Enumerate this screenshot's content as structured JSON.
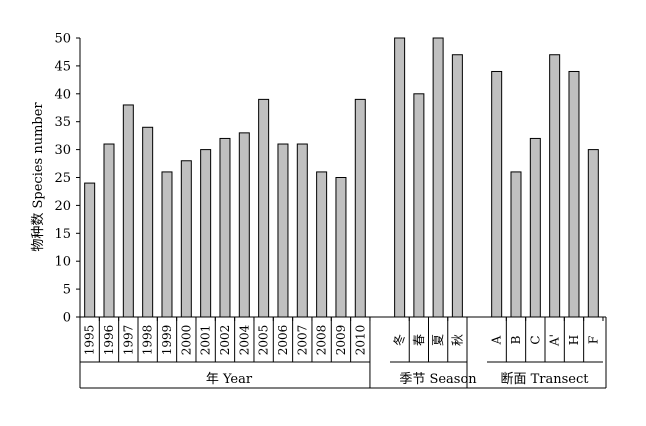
{
  "chart_data": {
    "type": "bar",
    "ylabel": "物种数 Species number",
    "ylim": [
      0,
      50
    ],
    "yticks": [
      0,
      5,
      10,
      15,
      20,
      25,
      30,
      35,
      40,
      45,
      50
    ],
    "grid": false,
    "legend": "none",
    "bar_color": "#c0c0c0",
    "groups": [
      {
        "label": "年 Year",
        "categories": [
          "1995",
          "1996",
          "1997",
          "1998",
          "1999",
          "2000",
          "2001",
          "2002",
          "2004",
          "2005",
          "2006",
          "2007",
          "2008",
          "2009",
          "2010"
        ],
        "values": [
          24,
          31,
          38,
          34,
          26,
          28,
          30,
          32,
          33,
          39,
          31,
          31,
          26,
          25,
          39
        ]
      },
      {
        "label": "季节 Season",
        "categories": [
          "冬",
          "春",
          "夏",
          "秋"
        ],
        "values": [
          50,
          40,
          50,
          47
        ]
      },
      {
        "label": "断面 Transect",
        "categories": [
          "A",
          "B",
          "C",
          "A'",
          "H",
          "F"
        ],
        "values": [
          44,
          26,
          32,
          47,
          44,
          30
        ]
      }
    ]
  }
}
